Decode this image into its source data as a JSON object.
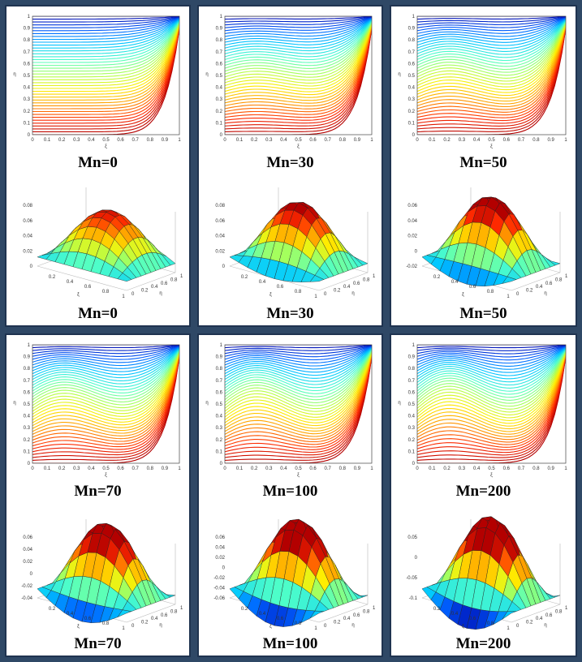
{
  "figure": {
    "panels": [
      {
        "contour_caption": "Mn=0",
        "surface_caption": "Mn=0"
      },
      {
        "contour_caption": "Mn=30",
        "surface_caption": "Mn=30"
      },
      {
        "contour_caption": "Mn=50",
        "surface_caption": "Mn=50"
      },
      {
        "contour_caption": "Mn=70",
        "surface_caption": "Mn=70"
      },
      {
        "contour_caption": "Mn=100",
        "surface_caption": "Mn=100"
      },
      {
        "contour_caption": "Mn=200",
        "surface_caption": "Mn=200"
      }
    ],
    "contour_axes": {
      "xlabel": "ξ",
      "ylabel": "η",
      "xticks": [
        "0",
        "0.1",
        "0.2",
        "0.3",
        "0.4",
        "0.5",
        "0.6",
        "0.7",
        "0.8",
        "0.9",
        "1"
      ],
      "yticks": [
        "0",
        "0.1",
        "0.2",
        "0.3",
        "0.4",
        "0.5",
        "0.6",
        "0.7",
        "0.8",
        "0.9",
        "1"
      ]
    },
    "surface_axes": {
      "xlabel": "ξ",
      "ylabel": "η",
      "xticks": [
        "0.2",
        "0.4",
        "0.6",
        "0.8",
        "1"
      ],
      "yticks": [
        "0",
        "0.2",
        "0.4",
        "0.6",
        "0.8",
        "1"
      ],
      "zticks": [
        [
          "0",
          "0.02",
          "0.04",
          "0.06",
          "0.08"
        ],
        [
          "0",
          "0.02",
          "0.04",
          "0.06",
          "0.08"
        ],
        [
          "-0.02",
          "0",
          "0.02",
          "0.04",
          "0.06"
        ],
        [
          "-0.04",
          "-0.02",
          "0",
          "0.02",
          "0.04",
          "0.06"
        ],
        [
          "-0.06",
          "-0.04",
          "-0.02",
          "0",
          "0.02",
          "0.04",
          "0.06"
        ],
        [
          "-0.1",
          "-0.05",
          "0",
          "0.05"
        ]
      ]
    },
    "colors": {
      "background": "#2f4866",
      "panel": "#ffffff",
      "colormap": [
        "#b30000",
        "#ff2a00",
        "#ff9900",
        "#ffee00",
        "#b0ff4f",
        "#4fffc8",
        "#00c8ff",
        "#0060ff",
        "#0000a8"
      ]
    }
  }
}
